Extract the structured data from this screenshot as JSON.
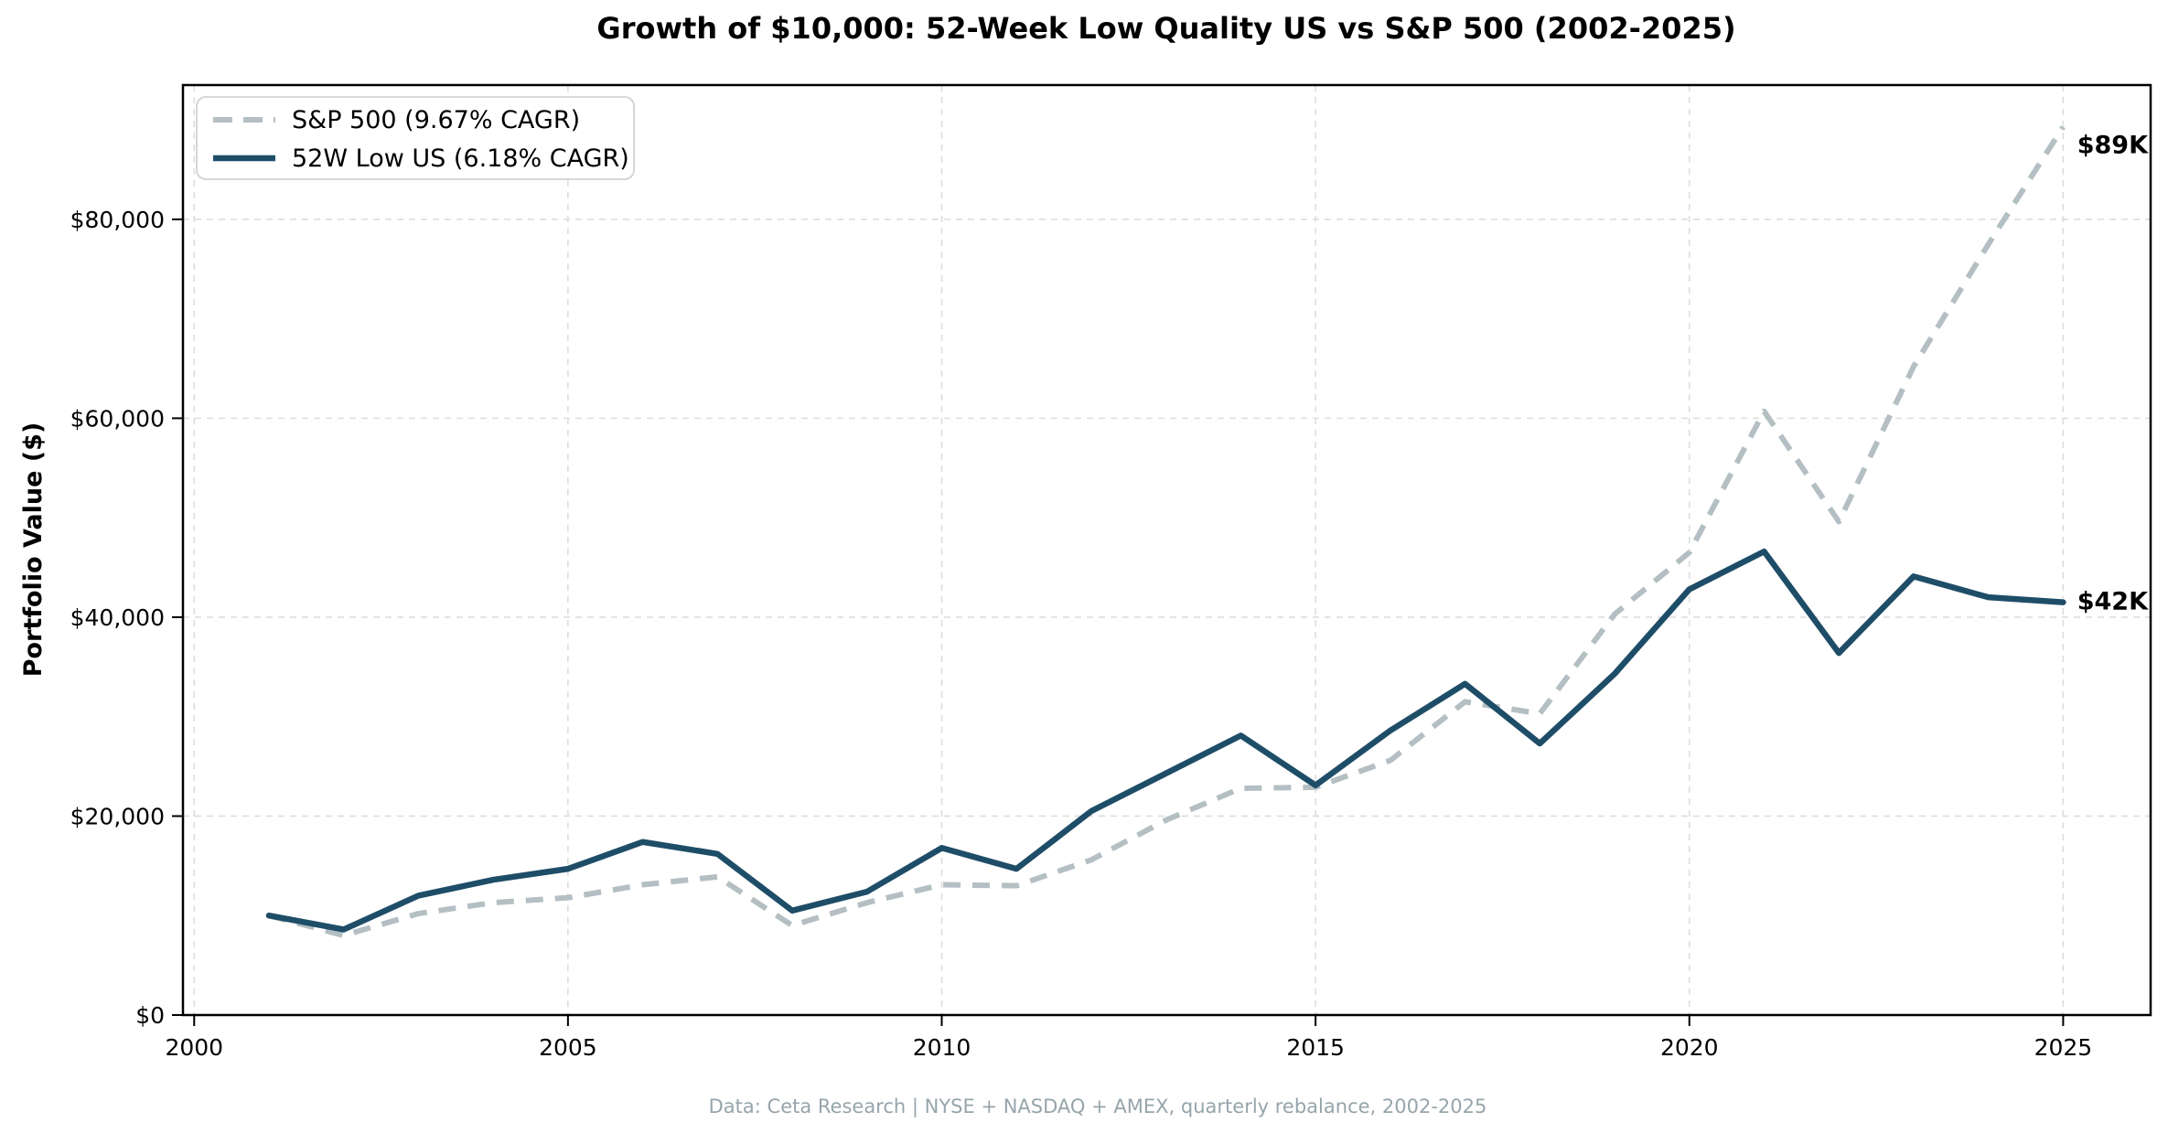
{
  "title": "Growth of $10,000: 52-Week Low Quality US vs S&P 500 (2002-2025)",
  "ylabel": "Portfolio Value ($)",
  "footer": "Data: Ceta Research | NYSE + NASDAQ + AMEX, quarterly rebalance, 2002-2025",
  "colors": {
    "sp500_line": "#b4bfc3",
    "low52_line": "#1e4d68",
    "sp500_label": "#a9b5ba",
    "low52_label": "#1e4d68",
    "gridline": "#dcdede",
    "spine": "#000000",
    "footer_text": "#96a5ab",
    "legend_border": "#d2d2d2",
    "background": "#ffffff"
  },
  "legend": {
    "entries": [
      {
        "label": "S&P 500 (9.67% CAGR)",
        "dashed": true
      },
      {
        "label": "52W Low US (6.18% CAGR)",
        "dashed": false
      }
    ]
  },
  "annotations": [
    {
      "text": "$89K",
      "value": 87500,
      "color": "#a9b5ba"
    },
    {
      "text": "$42K",
      "value": 41600,
      "color": "#1e4d68"
    }
  ],
  "chart_data": {
    "type": "line",
    "title": "Growth of $10,000: 52-Week Low Quality US vs S&P 500 (2002-2025)",
    "xlabel": "",
    "ylabel": "Portfolio Value ($)",
    "x": [
      2001,
      2002,
      2003,
      2004,
      2005,
      2006,
      2007,
      2008,
      2009,
      2010,
      2011,
      2012,
      2013,
      2014,
      2015,
      2016,
      2017,
      2018,
      2019,
      2020,
      2021,
      2022,
      2023,
      2024,
      2025
    ],
    "series": [
      {
        "name": "S&P 500 (9.67% CAGR)",
        "color": "#b4bfc3",
        "dashed": true,
        "values": [
          10000,
          8000,
          10200,
          11300,
          11800,
          13100,
          13900,
          9000,
          11300,
          13100,
          13000,
          15600,
          19600,
          22800,
          22900,
          25600,
          31500,
          30300,
          40300,
          46500,
          60700,
          49600,
          65200,
          77500,
          89300
        ]
      },
      {
        "name": "52W Low US (6.18% CAGR)",
        "color": "#1e4d68",
        "dashed": false,
        "values": [
          10000,
          8600,
          12000,
          13600,
          14700,
          17400,
          16200,
          10500,
          12400,
          16800,
          14700,
          20500,
          24300,
          28100,
          23100,
          28600,
          33300,
          27300,
          34300,
          42800,
          46600,
          36400,
          44100,
          42000,
          41500
        ]
      }
    ],
    "xticks": [
      2000,
      2005,
      2010,
      2015,
      2020,
      2025
    ],
    "xtick_labels": [
      "2000",
      "2005",
      "2010",
      "2015",
      "2020",
      "2025"
    ],
    "yticks": [
      0,
      20000,
      40000,
      60000,
      80000
    ],
    "ytick_labels": [
      "$0",
      "$20,000",
      "$40,000",
      "$60,000",
      "$80,000"
    ],
    "xlim": [
      1999.85,
      2026.17
    ],
    "ylim": [
      0,
      93500
    ],
    "grid": true,
    "legend_position": "upper-left"
  }
}
